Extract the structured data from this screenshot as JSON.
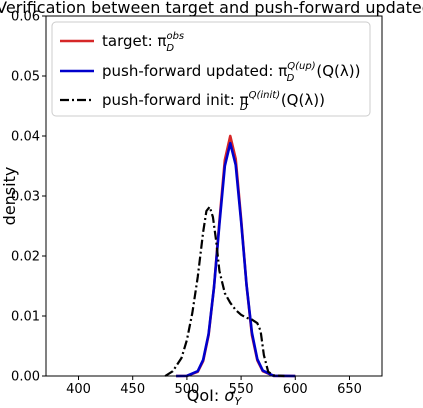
{
  "chart_data": {
    "type": "line",
    "title": "Verification between target and push-forward updated",
    "xlabel": "QoI: σ_Y",
    "ylabel": "density",
    "xlim": [
      370,
      680
    ],
    "ylim": [
      0,
      0.06
    ],
    "xticks": [
      "400",
      "450",
      "500",
      "550",
      "600",
      "650"
    ],
    "yticks": [
      "0.00",
      "0.01",
      "0.02",
      "0.03",
      "0.04",
      "0.05",
      "0.06"
    ],
    "grid": false,
    "legend_position": "upper-left",
    "series": [
      {
        "name": "target: π_D^obs",
        "legend_main": "target: π",
        "legend_sub": "D",
        "legend_sup": "obs",
        "legend_tail": "",
        "color": "#d62728",
        "style": "solid",
        "x": [
          490,
          500,
          510,
          515,
          520,
          525,
          530,
          535,
          540,
          545,
          550,
          555,
          560,
          565,
          570,
          580,
          600
        ],
        "y": [
          0,
          2e-05,
          0.0007,
          0.0025,
          0.0068,
          0.0148,
          0.0258,
          0.036,
          0.04,
          0.0362,
          0.0262,
          0.0152,
          0.0068,
          0.0026,
          0.0008,
          3e-05,
          0
        ]
      },
      {
        "name": "push-forward updated: π_D^Q(up)(Q(λ))",
        "legend_main": "push-forward updated: π",
        "legend_sub": "D",
        "legend_sup": "Q(up)",
        "legend_tail": "(Q(λ))",
        "color": "#0000cc",
        "style": "solid",
        "x": [
          490,
          500,
          510,
          515,
          520,
          525,
          530,
          535,
          540,
          545,
          550,
          555,
          560,
          565,
          570,
          580,
          600
        ],
        "y": [
          0,
          2e-05,
          0.0008,
          0.0027,
          0.007,
          0.0148,
          0.0253,
          0.035,
          0.0388,
          0.0352,
          0.0258,
          0.0152,
          0.0072,
          0.0028,
          0.0009,
          3e-05,
          0
        ]
      },
      {
        "name": "push-forward init: π_D^Q(init)(Q(λ))",
        "legend_main": "push-forward init: π",
        "legend_sub": "D",
        "legend_sup": "Q(init)",
        "legend_tail": "(Q(λ))",
        "color": "#000000",
        "style": "dashdot",
        "x": [
          480,
          487,
          495,
          500,
          505,
          510,
          515,
          518,
          521,
          524,
          527,
          530,
          535,
          540,
          545,
          550,
          555,
          560,
          565,
          568,
          571,
          575,
          580,
          590
        ],
        "y": [
          0,
          0.0008,
          0.003,
          0.006,
          0.0105,
          0.0165,
          0.024,
          0.0275,
          0.0282,
          0.0265,
          0.0225,
          0.0175,
          0.0138,
          0.0122,
          0.011,
          0.0102,
          0.0097,
          0.0094,
          0.0088,
          0.0075,
          0.0035,
          0.0007,
          0.0001,
          0
        ]
      }
    ]
  }
}
